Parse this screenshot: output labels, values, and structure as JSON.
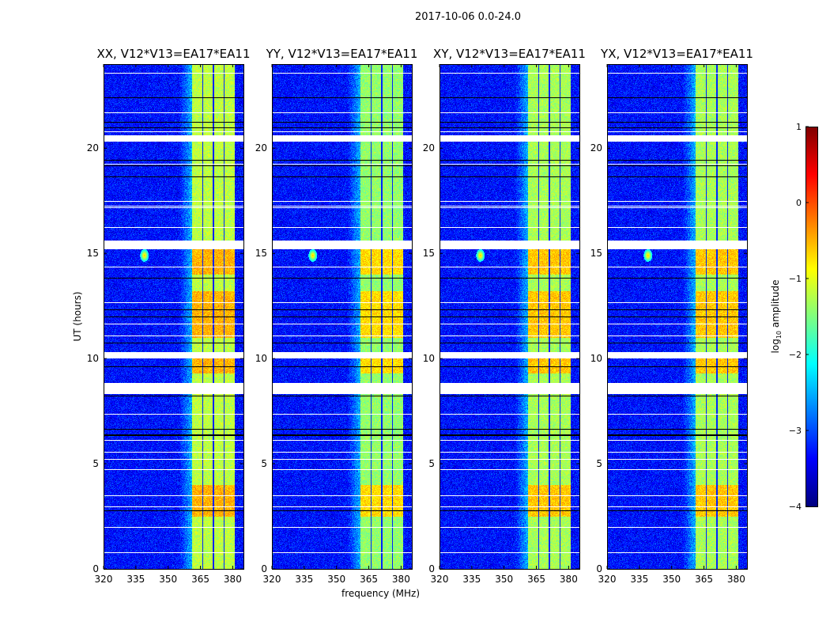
{
  "figure_title": "2017-10-06 0.0-24.0",
  "chart_data": [
    {
      "type": "heatmap",
      "title": "XX, V12*V13=EA17*EA11",
      "xlabel": "",
      "ylabel": "UT (hours)",
      "xlim": [
        320,
        385
      ],
      "ylim": [
        0,
        24
      ],
      "xticks": [
        "320",
        "335",
        "350",
        "365",
        "380"
      ],
      "yticks": [
        "0",
        "5",
        "10",
        "15",
        "20"
      ],
      "strong_band_mhz": [
        361,
        381
      ],
      "band_gaps_mhz": [
        366,
        371,
        376
      ],
      "band_level_log10": -1.2,
      "background_level_log10": -3.3,
      "bursts_hours": [
        [
          2.5,
          4.0
        ],
        [
          9.3,
          10.0
        ],
        [
          11.0,
          13.2
        ],
        [
          14.0,
          15.2
        ]
      ],
      "flagged_hours": [
        [
          8.3,
          8.8
        ],
        [
          10.0,
          10.3
        ],
        [
          15.2,
          15.6
        ],
        [
          20.3,
          20.6
        ]
      ],
      "rfi_spike": {
        "freq_mhz": 339,
        "hours": 14.9
      }
    },
    {
      "type": "heatmap",
      "title": "YY, V12*V13=EA17*EA11",
      "xlabel": "frequency (MHz)",
      "ylabel": "",
      "xlim": [
        320,
        385
      ],
      "ylim": [
        0,
        24
      ],
      "xticks": [
        "320",
        "335",
        "350",
        "365",
        "380"
      ],
      "yticks": [
        "0",
        "5",
        "10",
        "15",
        "20"
      ],
      "strong_band_mhz": [
        361,
        381
      ],
      "band_gaps_mhz": [
        366,
        371,
        376
      ],
      "band_level_log10": -1.4,
      "background_level_log10": -3.3,
      "bursts_hours": [
        [
          2.5,
          4.0
        ],
        [
          9.3,
          10.0
        ],
        [
          11.0,
          13.2
        ],
        [
          14.0,
          15.2
        ]
      ],
      "flagged_hours": [
        [
          8.3,
          8.8
        ],
        [
          10.0,
          10.3
        ],
        [
          15.2,
          15.6
        ],
        [
          20.3,
          20.6
        ]
      ],
      "rfi_spike": {
        "freq_mhz": 339,
        "hours": 14.9
      }
    },
    {
      "type": "heatmap",
      "title": "XY, V12*V13=EA17*EA11",
      "xlabel": "",
      "ylabel": "",
      "xlim": [
        320,
        385
      ],
      "ylim": [
        0,
        24
      ],
      "xticks": [
        "320",
        "335",
        "350",
        "365",
        "380"
      ],
      "yticks": [
        "0",
        "5",
        "10",
        "15",
        "20"
      ],
      "strong_band_mhz": [
        361,
        381
      ],
      "band_gaps_mhz": [
        366,
        371,
        376
      ],
      "band_level_log10": -1.3,
      "background_level_log10": -3.3,
      "bursts_hours": [
        [
          2.5,
          4.0
        ],
        [
          9.3,
          10.0
        ],
        [
          11.0,
          13.2
        ],
        [
          14.0,
          15.2
        ]
      ],
      "flagged_hours": [
        [
          8.3,
          8.8
        ],
        [
          10.0,
          10.3
        ],
        [
          15.2,
          15.6
        ],
        [
          20.3,
          20.6
        ]
      ],
      "rfi_spike": {
        "freq_mhz": 339,
        "hours": 14.9
      }
    },
    {
      "type": "heatmap",
      "title": "YX, V12*V13=EA17*EA11",
      "xlabel": "",
      "ylabel": "",
      "xlim": [
        320,
        385
      ],
      "ylim": [
        0,
        24
      ],
      "xticks": [
        "320",
        "335",
        "350",
        "365",
        "380"
      ],
      "yticks": [
        "0",
        "5",
        "10",
        "15",
        "20"
      ],
      "strong_band_mhz": [
        361,
        381
      ],
      "band_gaps_mhz": [
        366,
        371,
        376
      ],
      "band_level_log10": -1.3,
      "background_level_log10": -3.3,
      "bursts_hours": [
        [
          2.5,
          4.0
        ],
        [
          9.3,
          10.0
        ],
        [
          11.0,
          13.2
        ],
        [
          14.0,
          15.2
        ]
      ],
      "flagged_hours": [
        [
          8.3,
          8.8
        ],
        [
          10.0,
          10.3
        ],
        [
          15.2,
          15.6
        ],
        [
          20.3,
          20.6
        ]
      ],
      "rfi_spike": {
        "freq_mhz": 339,
        "hours": 14.9
      }
    }
  ],
  "colorbar": {
    "label_prefix": "log",
    "label_sub": "10",
    "label_suffix": " amplitude",
    "range": [
      -4,
      1
    ],
    "ticks": [
      "1",
      "0",
      "−1",
      "−2",
      "−3",
      "−4"
    ],
    "colormap": "jet"
  }
}
